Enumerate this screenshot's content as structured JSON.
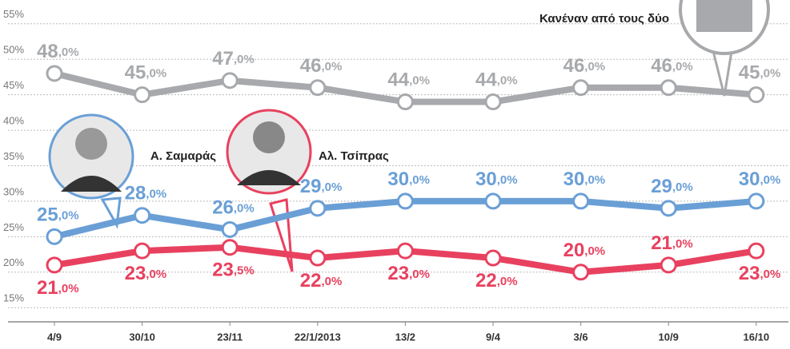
{
  "chart_data": {
    "type": "line",
    "categories": [
      "4/9",
      "30/10",
      "23/11",
      "22/1/2013",
      "13/2",
      "9/4",
      "3/6",
      "10/9",
      "16/10"
    ],
    "series": [
      {
        "name": "Κανέναν από τους δύο",
        "color": "#a7a9ac",
        "values": [
          48,
          45,
          47,
          46,
          44,
          44,
          46,
          46,
          45
        ],
        "value_labels": [
          "48,0%",
          "45,0%",
          "47,0%",
          "46,0%",
          "44,0%",
          "44,0%",
          "46,0%",
          "46,0%",
          "45,0%"
        ]
      },
      {
        "name": "Α. Σαμαράς",
        "color": "#6a9fd6",
        "values": [
          25,
          28,
          26,
          29,
          30,
          30,
          30,
          29,
          30
        ],
        "value_labels": [
          "25,0%",
          "28,0%",
          "26,0%",
          "29,0%",
          "30,0%",
          "30,0%",
          "30,0%",
          "29,0%",
          "30,0%"
        ]
      },
      {
        "name": "Αλ. Τσίπρας",
        "color": "#e8415f",
        "values": [
          21,
          23,
          23.5,
          22,
          23,
          22,
          20,
          21,
          23
        ],
        "value_labels": [
          "21,0%",
          "23,0%",
          "23,5%",
          "22,0%",
          "23,0%",
          "22,0%",
          "20,0%",
          "21,0%",
          "23,0%"
        ]
      }
    ],
    "ylim": [
      13,
      57
    ],
    "yticks": [
      {
        "value": 15,
        "label": "15%"
      },
      {
        "value": 20,
        "label": "20%"
      },
      {
        "value": 25,
        "label": "25%"
      },
      {
        "value": 30,
        "label": "30%"
      },
      {
        "value": 35,
        "label": "35%"
      },
      {
        "value": 40,
        "label": "40%"
      },
      {
        "value": 45,
        "label": "45%"
      },
      {
        "value": 50,
        "label": "50%"
      },
      {
        "value": 55,
        "label": "55%"
      }
    ],
    "grid": true
  }
}
